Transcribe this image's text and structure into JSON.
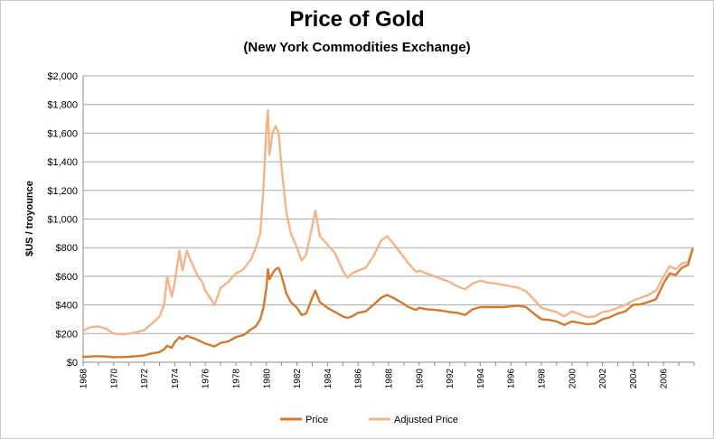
{
  "chart_data": {
    "type": "line",
    "title": "Price of Gold",
    "subtitle": "(New York Commodities Exchange)",
    "xlabel": "",
    "ylabel": "$US / troyounce",
    "xlim": [
      1968,
      2008
    ],
    "ylim": [
      0,
      2000
    ],
    "y_ticks": [
      "$0",
      "$200",
      "$400",
      "$600",
      "$800",
      "$1,000",
      "$1,200",
      "$1,400",
      "$1,600",
      "$1,800",
      "$2,000"
    ],
    "y_tick_values": [
      0,
      200,
      400,
      600,
      800,
      1000,
      1200,
      1400,
      1600,
      1800,
      2000
    ],
    "x_ticks": [
      "1968",
      "1970",
      "1972",
      "1974",
      "1976",
      "1978",
      "1980",
      "1982",
      "1984",
      "1986",
      "1988",
      "1990",
      "1992",
      "1994",
      "1996",
      "1998",
      "2000",
      "2002",
      "2004",
      "2006"
    ],
    "grid": "horizontal",
    "legend_position": "bottom",
    "series": [
      {
        "name": "Price",
        "color": "#d07a30",
        "x": [
          1968.0,
          1968.5,
          1969.0,
          1969.5,
          1970.0,
          1970.5,
          1971.0,
          1971.5,
          1972.0,
          1972.5,
          1973.0,
          1973.3,
          1973.5,
          1973.8,
          1974.0,
          1974.3,
          1974.5,
          1974.8,
          1975.0,
          1975.3,
          1975.5,
          1975.8,
          1976.0,
          1976.3,
          1976.6,
          1977.0,
          1977.5,
          1978.0,
          1978.5,
          1979.0,
          1979.3,
          1979.6,
          1979.8,
          1980.0,
          1980.1,
          1980.2,
          1980.4,
          1980.6,
          1980.8,
          1981.0,
          1981.3,
          1981.6,
          1982.0,
          1982.3,
          1982.6,
          1983.0,
          1983.2,
          1983.5,
          1984.0,
          1984.5,
          1985.0,
          1985.3,
          1985.6,
          1986.0,
          1986.5,
          1987.0,
          1987.5,
          1987.9,
          1988.3,
          1988.8,
          1989.3,
          1989.8,
          1990.0,
          1990.5,
          1991.0,
          1991.5,
          1992.0,
          1992.5,
          1993.0,
          1993.5,
          1994.0,
          1994.5,
          1995.0,
          1995.5,
          1996.0,
          1996.5,
          1997.0,
          1997.5,
          1998.0,
          1998.5,
          1999.0,
          1999.5,
          2000.0,
          2000.5,
          2001.0,
          2001.5,
          2002.0,
          2002.5,
          2003.0,
          2003.5,
          2004.0,
          2004.5,
          2005.0,
          2005.5,
          2006.0,
          2006.4,
          2006.8,
          2007.2,
          2007.6,
          2007.9
        ],
        "values": [
          37,
          40,
          42,
          40,
          35,
          36,
          38,
          42,
          48,
          62,
          70,
          90,
          115,
          100,
          140,
          175,
          160,
          185,
          175,
          165,
          155,
          140,
          130,
          120,
          110,
          135,
          145,
          175,
          190,
          230,
          250,
          300,
          380,
          520,
          650,
          580,
          620,
          650,
          660,
          600,
          480,
          420,
          380,
          330,
          340,
          450,
          500,
          420,
          380,
          350,
          320,
          310,
          320,
          345,
          355,
          400,
          450,
          470,
          450,
          420,
          385,
          365,
          380,
          370,
          365,
          360,
          350,
          345,
          330,
          370,
          385,
          385,
          385,
          385,
          390,
          395,
          385,
          340,
          300,
          295,
          285,
          260,
          285,
          275,
          265,
          270,
          300,
          315,
          340,
          355,
          400,
          405,
          420,
          440,
          550,
          620,
          610,
          660,
          680,
          790
        ]
      },
      {
        "name": "Adjusted Price",
        "color": "#f4b48a",
        "x": [
          1968.0,
          1968.5,
          1969.0,
          1969.5,
          1970.0,
          1970.5,
          1971.0,
          1971.5,
          1972.0,
          1972.5,
          1973.0,
          1973.3,
          1973.5,
          1973.8,
          1974.0,
          1974.3,
          1974.5,
          1974.8,
          1975.0,
          1975.3,
          1975.5,
          1975.8,
          1976.0,
          1976.3,
          1976.6,
          1977.0,
          1977.5,
          1978.0,
          1978.5,
          1979.0,
          1979.3,
          1979.6,
          1979.8,
          1980.0,
          1980.1,
          1980.2,
          1980.4,
          1980.6,
          1980.8,
          1981.0,
          1981.3,
          1981.6,
          1982.0,
          1982.3,
          1982.6,
          1983.0,
          1983.2,
          1983.5,
          1984.0,
          1984.5,
          1985.0,
          1985.3,
          1985.6,
          1986.0,
          1986.5,
          1987.0,
          1987.5,
          1987.9,
          1988.3,
          1988.8,
          1989.3,
          1989.8,
          1990.0,
          1990.5,
          1991.0,
          1991.5,
          1992.0,
          1992.5,
          1993.0,
          1993.5,
          1994.0,
          1994.5,
          1995.0,
          1995.5,
          1996.0,
          1996.5,
          1997.0,
          1997.5,
          1998.0,
          1998.5,
          1999.0,
          1999.5,
          2000.0,
          2000.5,
          2001.0,
          2001.5,
          2002.0,
          2002.5,
          2003.0,
          2003.5,
          2004.0,
          2004.5,
          2005.0,
          2005.5,
          2006.0,
          2006.4,
          2006.8,
          2007.2,
          2007.6,
          2007.9
        ],
        "values": [
          220,
          245,
          250,
          235,
          200,
          195,
          200,
          210,
          225,
          270,
          320,
          400,
          600,
          460,
          560,
          780,
          640,
          780,
          720,
          650,
          600,
          560,
          500,
          450,
          400,
          520,
          560,
          620,
          650,
          720,
          800,
          900,
          1200,
          1650,
          1760,
          1450,
          1600,
          1650,
          1600,
          1350,
          1050,
          900,
          800,
          710,
          750,
          950,
          1060,
          880,
          820,
          760,
          640,
          590,
          620,
          640,
          660,
          740,
          850,
          880,
          830,
          760,
          690,
          630,
          640,
          620,
          600,
          580,
          560,
          530,
          510,
          550,
          570,
          555,
          550,
          540,
          530,
          520,
          495,
          440,
          380,
          365,
          350,
          320,
          355,
          335,
          315,
          320,
          350,
          360,
          380,
          400,
          430,
          450,
          470,
          500,
          600,
          670,
          650,
          690,
          700,
          790
        ]
      }
    ]
  }
}
